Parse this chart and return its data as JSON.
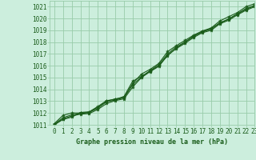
{
  "title": "Graphe pression niveau de la mer (hPa)",
  "xlim": [
    -0.5,
    23
  ],
  "ylim": [
    1011,
    1021.5
  ],
  "xticks": [
    0,
    1,
    2,
    3,
    4,
    5,
    6,
    7,
    8,
    9,
    10,
    11,
    12,
    13,
    14,
    15,
    16,
    17,
    18,
    19,
    20,
    21,
    22,
    23
  ],
  "yticks": [
    1011,
    1012,
    1013,
    1014,
    1015,
    1016,
    1017,
    1018,
    1019,
    1020,
    1021
  ],
  "background_color": "#cceedd",
  "grid_color": "#99ccaa",
  "line_color": "#1a5c1a",
  "title_color": "#1a5c1a",
  "series": [
    [
      1011.1,
      1011.8,
      1012.0,
      1012.0,
      1012.05,
      1012.5,
      1013.0,
      1013.2,
      1013.3,
      1014.5,
      1015.3,
      1015.7,
      1016.2,
      1017.2,
      1017.7,
      1018.15,
      1018.6,
      1018.95,
      1019.2,
      1019.8,
      1020.15,
      1020.5,
      1021.0,
      1021.25
    ],
    [
      1011.0,
      1011.5,
      1011.75,
      1011.9,
      1011.95,
      1012.3,
      1012.8,
      1013.05,
      1013.2,
      1014.2,
      1015.0,
      1015.5,
      1015.95,
      1016.9,
      1017.45,
      1017.9,
      1018.4,
      1018.8,
      1019.0,
      1019.55,
      1019.85,
      1020.3,
      1020.7,
      1021.0
    ],
    [
      1011.0,
      1011.45,
      1011.65,
      1012.05,
      1012.1,
      1012.55,
      1013.05,
      1013.15,
      1013.4,
      1014.7,
      1015.1,
      1015.55,
      1016.0,
      1016.85,
      1017.5,
      1018.0,
      1018.55,
      1018.85,
      1019.15,
      1019.6,
      1019.95,
      1020.4,
      1020.85,
      1021.1
    ],
    [
      1011.05,
      1011.6,
      1011.85,
      1011.95,
      1012.05,
      1012.4,
      1012.95,
      1013.1,
      1013.3,
      1014.4,
      1015.05,
      1015.6,
      1016.1,
      1017.0,
      1017.6,
      1018.0,
      1018.48,
      1018.9,
      1019.1,
      1019.65,
      1019.95,
      1020.38,
      1020.78,
      1021.08
    ]
  ]
}
